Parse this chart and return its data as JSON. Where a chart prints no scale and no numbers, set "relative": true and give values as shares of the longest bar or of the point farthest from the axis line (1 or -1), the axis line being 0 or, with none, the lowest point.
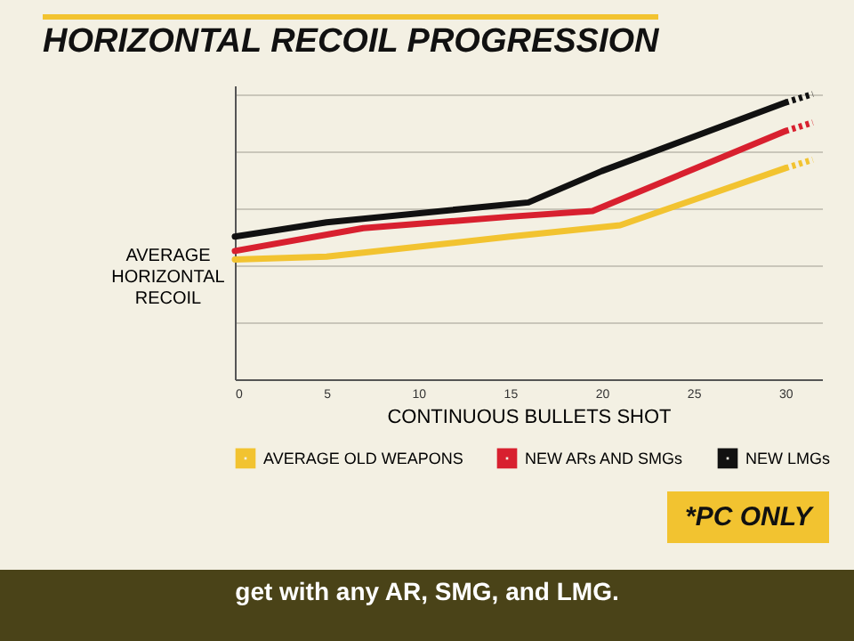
{
  "chart_data": {
    "type": "line",
    "title": "HORIZONTAL RECOIL PROGRESSION",
    "xlabel": "CONTINUOUS BULLETS SHOT",
    "ylabel": "AVERAGE HORIZONTAL RECOIL",
    "relative": true,
    "xlim": [
      0,
      32
    ],
    "xticks": [
      0,
      5,
      10,
      15,
      20,
      25,
      30
    ],
    "grid": "y",
    "legend": "bottom",
    "line_style": "solid",
    "marker": "none",
    "series": [
      {
        "name": "AVERAGE OLD WEAPONS",
        "color": "#f2c330",
        "x": [
          0,
          5,
          15,
          21,
          30
        ],
        "values": [
          0.42,
          0.43,
          0.5,
          0.54,
          0.74
        ]
      },
      {
        "name": "NEW ARs AND SMGs",
        "color": "#d8202f",
        "x": [
          0,
          7,
          15,
          19.5,
          30
        ],
        "values": [
          0.45,
          0.53,
          0.57,
          0.59,
          0.87
        ]
      },
      {
        "name": "NEW LMGs",
        "color": "#111111",
        "x": [
          0,
          5,
          16,
          20,
          30
        ],
        "values": [
          0.5,
          0.55,
          0.62,
          0.73,
          0.97
        ]
      },
      {
        "color": "#f2c330",
        "type": "line",
        "line_style": "dotted",
        "x": [
          30,
          31.5
        ],
        "values": [
          0.74,
          0.77
        ]
      },
      {
        "color": "#d8202f",
        "type": "line",
        "line_style": "dotted",
        "x": [
          30,
          31.5
        ],
        "values": [
          0.87,
          0.9
        ]
      },
      {
        "color": "#111111",
        "type": "line",
        "line_style": "dotted",
        "x": [
          30,
          31.5
        ],
        "values": [
          0.97,
          1
        ]
      }
    ],
    "annotations": [
      "*PC ONLY",
      "get with any AR, SMG, and LMG."
    ]
  }
}
